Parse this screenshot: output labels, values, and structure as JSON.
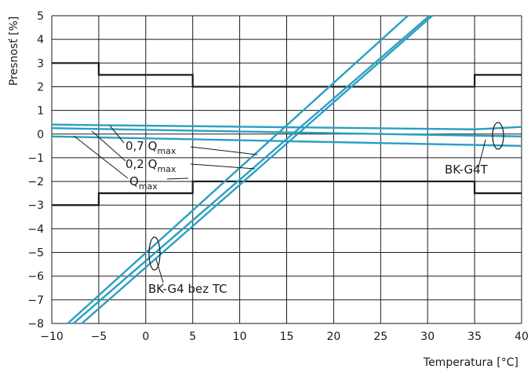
{
  "chart_data": {
    "type": "line",
    "title": "",
    "xlabel": "Temperatura [°C]",
    "ylabel": "Presnosť [%]",
    "xlim": [
      -10,
      40
    ],
    "ylim": [
      -8,
      5
    ],
    "x_ticks": [
      -10,
      -5,
      0,
      5,
      10,
      15,
      20,
      25,
      30,
      35,
      40
    ],
    "y_ticks": [
      -8,
      -7,
      -6,
      -5,
      -4,
      -3,
      -2,
      -1,
      0,
      1,
      2,
      3,
      4,
      5
    ],
    "grid": true,
    "colors": {
      "limits": "#1a1a1a",
      "curves": "#2a9fc2",
      "grid": "#1a1a1a"
    },
    "series": [
      {
        "group": "limits",
        "x": [
          -10,
          -5,
          -5,
          5,
          5,
          35,
          35,
          40
        ],
        "y": [
          3,
          3,
          2.5,
          2.5,
          2,
          2,
          2.5,
          2.5
        ]
      },
      {
        "group": "limits",
        "x": [
          -10,
          -5,
          -5,
          5,
          5,
          35,
          35,
          40
        ],
        "y": [
          -3,
          -3,
          -2.5,
          -2.5,
          -2,
          -2,
          -2.5,
          -2.5
        ]
      },
      {
        "group": "BK-G4T",
        "x": [
          -10,
          35,
          40
        ],
        "y": [
          0.4,
          0.2,
          0.3
        ]
      },
      {
        "group": "BK-G4T",
        "x": [
          -10,
          40
        ],
        "y": [
          0.25,
          -0.1
        ]
      },
      {
        "group": "BK-G4T",
        "x": [
          -10,
          40
        ],
        "y": [
          -0.1,
          -0.5
        ]
      },
      {
        "group": "BK-G4 bez TC",
        "x": [
          -8.3,
          27.9
        ],
        "y": [
          -8,
          5
        ]
      },
      {
        "group": "BK-G4 bez TC",
        "x": [
          -7.7,
          30.2
        ],
        "y": [
          -8,
          5
        ]
      },
      {
        "group": "BK-G4 bez TC",
        "x": [
          -6.8,
          30.5
        ],
        "y": [
          -8,
          5
        ]
      }
    ],
    "annotations": {
      "q07": {
        "text": "0,7 Q",
        "sub": "max"
      },
      "q02": {
        "text": "0,2 Q",
        "sub": "max"
      },
      "qmax": {
        "text": "Q",
        "sub": "max"
      },
      "g4t": {
        "text": "BK-G4T"
      },
      "g4": {
        "text": "BK-G4 bez TC"
      }
    }
  }
}
